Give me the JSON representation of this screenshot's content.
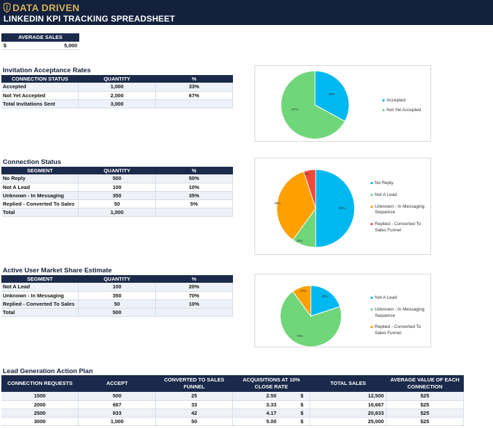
{
  "header": {
    "brand": "DATA DRIVEN",
    "subtitle": "LINKEDIN KPI TRACKING SPREADSHEET",
    "colors": {
      "bar": "#14213d",
      "brand": "#d4b25a"
    }
  },
  "average_sales": {
    "label": "AVERAGE SALES",
    "currency": "$",
    "value": "5,000"
  },
  "invitation": {
    "title": "Invitation Acceptance Rates",
    "headers": [
      "CONNECTION STATUS",
      "QUANTITY",
      "%"
    ],
    "rows": [
      [
        "Accepted",
        "1,000",
        "33%"
      ],
      [
        "Not Yet Accepted",
        "2,000",
        "67%"
      ],
      [
        "Total Invitations Sent",
        "3,000",
        ""
      ]
    ]
  },
  "connection": {
    "title": "Connection Status",
    "headers": [
      "SEGMENT",
      "QUANTITY",
      "%"
    ],
    "rows": [
      [
        "No Reply",
        "500",
        "50%"
      ],
      [
        "Not A Lead",
        "100",
        "10%"
      ],
      [
        "Unknown - In Messaging",
        "350",
        "35%"
      ],
      [
        "Replied - Converted To Sales",
        "50",
        "5%"
      ],
      [
        "Total",
        "1,000",
        ""
      ]
    ]
  },
  "market": {
    "title": "Active User Market Share Estimate",
    "headers": [
      "SEGMENT",
      "QUANTITY",
      "%"
    ],
    "rows": [
      [
        "Not A Lead",
        "100",
        "20%"
      ],
      [
        "Unknown - In Messaging",
        "350",
        "70%"
      ],
      [
        "Replied - Converted To Sales",
        "50",
        "10%"
      ],
      [
        "Total",
        "500",
        ""
      ]
    ]
  },
  "lead_plan": {
    "title": "Lead Generation Action Plan",
    "headers": [
      "CONNECTION REQUESTS",
      "ACCEPT",
      "CONVERTED TO SALES FUNNEL",
      "ACQUISITIONS AT 10% CLOSE RATE",
      "TOTAL SALES",
      "AVERAGE VALUE OF EACH CONNECTION"
    ],
    "currency": "$",
    "rows": [
      [
        "1500",
        "500",
        "25",
        "2.50",
        "12,500",
        "$25"
      ],
      [
        "2000",
        "667",
        "33",
        "3.33",
        "16,667",
        "$25"
      ],
      [
        "2500",
        "833",
        "42",
        "4.17",
        "20,833",
        "$25"
      ],
      [
        "3000",
        "1,000",
        "50",
        "5.00",
        "25,000",
        "$25"
      ]
    ]
  },
  "chart_data": [
    {
      "type": "pie",
      "title": "",
      "categories": [
        "Accepted",
        "Not Yet Accepted"
      ],
      "values": [
        33,
        67
      ],
      "labels": [
        "33%",
        "67%"
      ],
      "colors": [
        "#00b8f0",
        "#6fd67a"
      ],
      "legend": "right"
    },
    {
      "type": "pie",
      "title": "",
      "categories": [
        "No Reply",
        "Not A Lead",
        "Unknown - In Messaging Sequence",
        "Replied - Converted To Sales Funnel"
      ],
      "values": [
        50,
        10,
        35,
        5
      ],
      "labels": [
        "50%",
        "10%",
        "35%",
        "5%"
      ],
      "colors": [
        "#00b8f0",
        "#6fd67a",
        "#ff9f00",
        "#f04a3a"
      ],
      "legend": "right"
    },
    {
      "type": "pie",
      "title": "",
      "categories": [
        "Not A Lead",
        "Unknown - In Messaging Sequence",
        "Replied - Converted To Sales Funnel"
      ],
      "values": [
        20,
        70,
        10
      ],
      "labels": [
        "20%",
        "70%",
        "10%"
      ],
      "colors": [
        "#00b8f0",
        "#6fd67a",
        "#ff9f00"
      ],
      "legend": "right"
    }
  ]
}
